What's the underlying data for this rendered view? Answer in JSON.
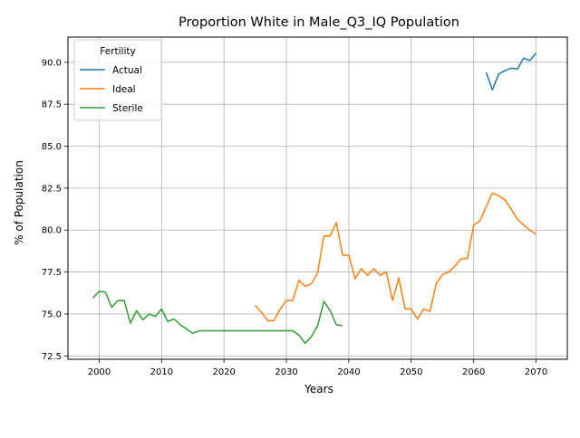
{
  "chart_data": {
    "type": "line",
    "title": "Proportion White in Male_Q3_IQ Population",
    "xlabel": "Years",
    "ylabel": "% of Population",
    "xlim": [
      1995,
      2075
    ],
    "ylim": [
      72.3,
      91.5
    ],
    "xticks": [
      2000,
      2010,
      2020,
      2030,
      2040,
      2050,
      2060,
      2070
    ],
    "yticks": [
      72.5,
      75.0,
      77.5,
      80.0,
      82.5,
      85.0,
      87.5,
      90.0
    ],
    "xtick_labels": [
      "2000",
      "2010",
      "2020",
      "2030",
      "2040",
      "2050",
      "2060",
      "2070"
    ],
    "ytick_labels": [
      "72.5",
      "75.0",
      "77.5",
      "80.0",
      "82.5",
      "85.0",
      "87.5",
      "90.0"
    ],
    "grid": true,
    "legend": {
      "title": "Fertility",
      "position": "upper-left"
    },
    "series": [
      {
        "name": "Actual",
        "color": "#1f77b4",
        "x": [
          2062,
          2063,
          2064,
          2065,
          2066,
          2067,
          2068,
          2069,
          2070
        ],
        "y": [
          89.4,
          88.35,
          89.3,
          89.5,
          89.65,
          89.6,
          90.25,
          90.1,
          90.55
        ]
      },
      {
        "name": "Ideal",
        "color": "#ff7f0e",
        "x": [
          2025,
          2026,
          2027,
          2028,
          2029,
          2030,
          2031,
          2032,
          2033,
          2034,
          2035,
          2036,
          2037,
          2038,
          2039,
          2040,
          2041,
          2042,
          2043,
          2044,
          2045,
          2046,
          2047,
          2048,
          2049,
          2050,
          2051,
          2052,
          2053,
          2054,
          2055,
          2056,
          2057,
          2058,
          2059,
          2060,
          2061,
          2062,
          2063,
          2064,
          2065,
          2066,
          2067,
          2068,
          2069,
          2070
        ],
        "y": [
          75.5,
          75.1,
          74.6,
          74.6,
          75.3,
          75.8,
          75.8,
          77.0,
          76.65,
          76.8,
          77.45,
          79.65,
          79.65,
          80.45,
          78.5,
          78.5,
          77.1,
          77.7,
          77.3,
          77.7,
          77.3,
          77.5,
          75.8,
          77.15,
          75.3,
          75.3,
          74.7,
          75.3,
          75.15,
          76.8,
          77.35,
          77.5,
          77.85,
          78.3,
          78.3,
          80.3,
          80.55,
          81.4,
          82.2,
          82.05,
          81.8,
          81.25,
          80.65,
          80.3,
          80.0,
          79.75
        ]
      },
      {
        "name": "Sterile",
        "color": "#2ca02c",
        "x": [
          1999,
          2000,
          2001,
          2002,
          2003,
          2004,
          2005,
          2006,
          2007,
          2008,
          2009,
          2010,
          2011,
          2012,
          2013,
          2014,
          2015,
          2016,
          2017,
          2018,
          2019,
          2020,
          2021,
          2022,
          2023,
          2024,
          2025,
          2026,
          2027,
          2028,
          2029,
          2030,
          2031,
          2032,
          2033,
          2034,
          2035,
          2036,
          2037,
          2038,
          2039
        ],
        "y": [
          75.95,
          76.35,
          76.3,
          75.4,
          75.8,
          75.8,
          74.45,
          75.2,
          74.65,
          75.0,
          74.85,
          75.3,
          74.55,
          74.7,
          74.35,
          74.1,
          73.85,
          74.0,
          74.0,
          74.0,
          74.0,
          74.0,
          74.0,
          74.0,
          74.0,
          74.0,
          74.0,
          74.0,
          74.0,
          74.0,
          74.0,
          74.0,
          74.0,
          73.75,
          73.25,
          73.65,
          74.3,
          75.75,
          75.2,
          74.35,
          74.3
        ]
      }
    ]
  }
}
